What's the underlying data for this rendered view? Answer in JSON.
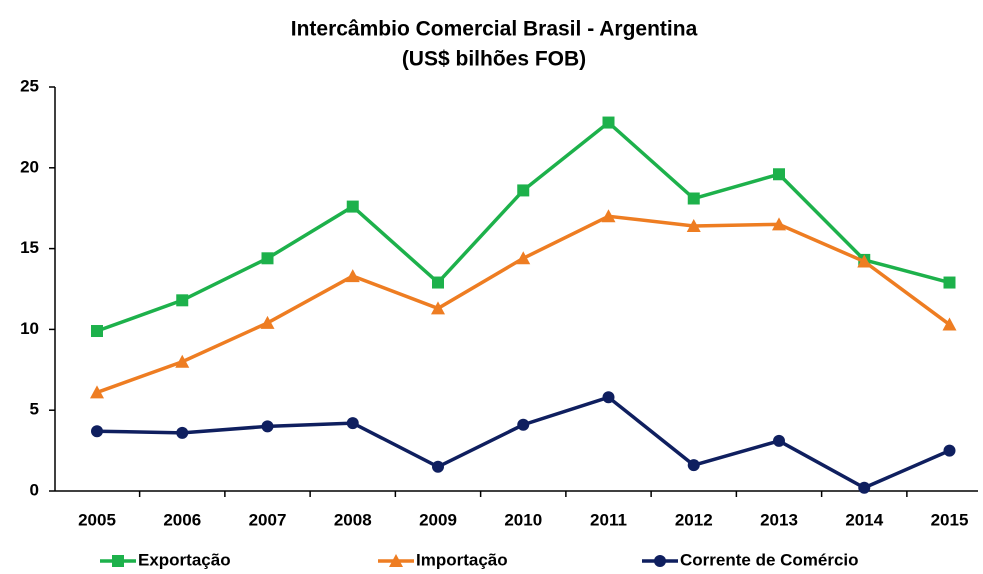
{
  "chart_data": {
    "type": "line",
    "title": "Intercâmbio Comercial Brasil - Argentina",
    "subtitle": "(US$ bilhões FOB)",
    "categories": [
      "2005",
      "2006",
      "2007",
      "2008",
      "2009",
      "2010",
      "2011",
      "2012",
      "2013",
      "2014",
      "2015"
    ],
    "series": [
      {
        "name": "Exportação",
        "color": "#1db14b",
        "marker": "square",
        "values": [
          9.9,
          11.8,
          14.4,
          17.6,
          12.9,
          18.6,
          22.8,
          18.1,
          19.6,
          14.3,
          12.9
        ]
      },
      {
        "name": "Importação",
        "color": "#ee7d22",
        "marker": "triangle",
        "values": [
          6.1,
          8.0,
          10.4,
          13.3,
          11.3,
          14.4,
          17.0,
          16.4,
          16.5,
          14.2,
          10.3
        ]
      },
      {
        "name": "Corrente de Comércio",
        "color": "#0f1f5f",
        "marker": "circle",
        "values": [
          3.7,
          3.6,
          4.0,
          4.2,
          1.5,
          4.1,
          5.8,
          1.6,
          3.1,
          0.2,
          2.5
        ]
      }
    ],
    "ylim": [
      0,
      25
    ],
    "yticks": [
      0,
      5,
      10,
      15,
      20,
      25
    ],
    "grid": false,
    "legend": "bottom"
  }
}
